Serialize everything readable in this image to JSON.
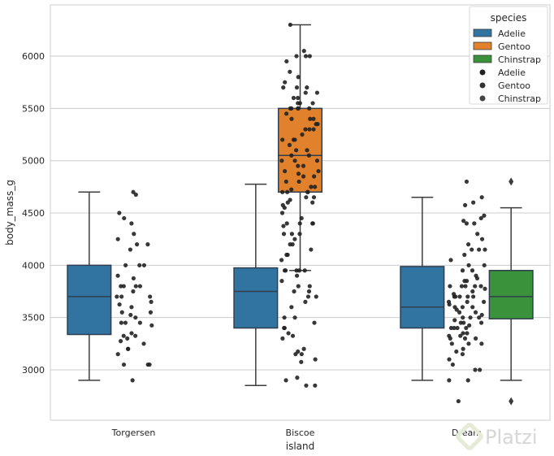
{
  "chart_data": {
    "type": "box",
    "title": "",
    "xlabel": "island",
    "ylabel": "body_mass_g",
    "ylim": [
      2518,
      6490
    ],
    "yticks": [
      3000,
      3500,
      4000,
      4500,
      5000,
      5500,
      6000
    ],
    "grid": "horizontal",
    "categories": [
      "Torgersen",
      "Biscoe",
      "Dream"
    ],
    "hue_order": [
      "Adelie",
      "Gentoo",
      "Chinstrap"
    ],
    "colors": {
      "Adelie": "#3274a1",
      "Gentoo": "#e1812c",
      "Chinstrap": "#3a923a"
    },
    "strip_colors": {
      "Adelie": "#222222",
      "Gentoo": "#333333",
      "Chinstrap": "#444444"
    },
    "boxes": [
      {
        "island": "Torgersen",
        "species": "Adelie",
        "whislo": 2900,
        "q1": 3338,
        "median": 3700,
        "q3": 4000,
        "whishi": 4700,
        "fliers": []
      },
      {
        "island": "Biscoe",
        "species": "Adelie",
        "whislo": 2850,
        "q1": 3400,
        "median": 3750,
        "q3": 3975,
        "whishi": 4775,
        "fliers": []
      },
      {
        "island": "Biscoe",
        "species": "Gentoo",
        "whislo": 3950,
        "q1": 4700,
        "median": 5050,
        "q3": 5500,
        "whishi": 6300,
        "fliers": []
      },
      {
        "island": "Dream",
        "species": "Adelie",
        "whislo": 2900,
        "q1": 3400,
        "median": 3600,
        "q3": 3988,
        "whishi": 4650,
        "fliers": []
      },
      {
        "island": "Dream",
        "species": "Chinstrap",
        "whislo": 2900,
        "q1": 3488,
        "median": 3700,
        "q3": 3950,
        "whishi": 4550,
        "fliers": [
          2700,
          4800
        ]
      }
    ],
    "strip": [
      {
        "island": "Torgersen",
        "values": [
          4700,
          4675,
          4500,
          4450,
          4400,
          4300,
          4250,
          4200,
          4200,
          4150,
          4000,
          4000,
          4000,
          3900,
          3875,
          3800,
          3800,
          3800,
          3800,
          3750,
          3700,
          3700,
          3700,
          3650,
          3625,
          3600,
          3550,
          3550,
          3525,
          3500,
          3450,
          3450,
          3450,
          3425,
          3350,
          3325,
          3325,
          3300,
          3275,
          3250,
          3200,
          3200,
          3150,
          3050,
          3050,
          3050,
          2900
        ]
      },
      {
        "island": "Biscoe",
        "values": [
          6300,
          6050,
          6000,
          6000,
          6000,
          5950,
          5850,
          5800,
          5750,
          5700,
          5700,
          5700,
          5650,
          5650,
          5600,
          5600,
          5550,
          5550,
          5550,
          5500,
          5500,
          5500,
          5500,
          5500,
          5450,
          5400,
          5400,
          5400,
          5350,
          5350,
          5300,
          5300,
          5300,
          5250,
          5200,
          5200,
          5200,
          5150,
          5100,
          5100,
          5050,
          5050,
          5000,
          5000,
          5000,
          4950,
          4950,
          4900,
          4900,
          4875,
          4850,
          4850,
          4800,
          4800,
          4750,
          4750,
          4725,
          4700,
          4700,
          4700,
          4700,
          4650,
          4650,
          4625,
          4600,
          4600,
          4575,
          4550,
          4500,
          4450,
          4400,
          4400,
          4400,
          4400,
          4375,
          4300,
          4300,
          4300,
          4250,
          4200,
          4200,
          4150,
          4100,
          4100,
          4050,
          3950,
          3950,
          3950,
          3950,
          3950,
          3900,
          3850,
          3800,
          3800,
          3750,
          3750,
          3700,
          3700,
          3650,
          3600,
          3500,
          3500,
          3450,
          3400,
          3400,
          3350,
          3325,
          3300,
          3200,
          3175,
          3150,
          3150,
          3100,
          3075,
          2925,
          2900,
          2850,
          2850
        ]
      },
      {
        "island": "Dream",
        "values": [
          4800,
          4650,
          4600,
          4575,
          4475,
          4450,
          4425,
          4400,
          4400,
          4300,
          4250,
          4200,
          4150,
          4150,
          4150,
          4100,
          4050,
          4000,
          4000,
          3950,
          3950,
          3900,
          3875,
          3850,
          3850,
          3800,
          3800,
          3800,
          3800,
          3800,
          3775,
          3750,
          3725,
          3700,
          3700,
          3700,
          3700,
          3700,
          3650,
          3650,
          3650,
          3625,
          3600,
          3600,
          3600,
          3575,
          3550,
          3550,
          3525,
          3500,
          3500,
          3500,
          3475,
          3450,
          3450,
          3450,
          3425,
          3400,
          3400,
          3400,
          3400,
          3350,
          3350,
          3325,
          3325,
          3300,
          3300,
          3300,
          3250,
          3250,
          3250,
          3200,
          3175,
          3150,
          3100,
          3050,
          3000,
          3000,
          2900,
          2900,
          2700
        ]
      }
    ],
    "legend": {
      "title": "species",
      "placement": "top-right",
      "entries": [
        {
          "label": "Adelie",
          "kind": "patch",
          "color": "#3274a1"
        },
        {
          "label": "Gentoo",
          "kind": "patch",
          "color": "#e1812c"
        },
        {
          "label": "Chinstrap",
          "kind": "patch",
          "color": "#3a923a"
        },
        {
          "label": "Adelie",
          "kind": "dot",
          "color": "#222222"
        },
        {
          "label": "Gentoo",
          "kind": "dot",
          "color": "#333333"
        },
        {
          "label": "Chinstrap",
          "kind": "dot",
          "color": "#444444"
        }
      ]
    }
  },
  "watermark": {
    "text": "Platzi"
  }
}
